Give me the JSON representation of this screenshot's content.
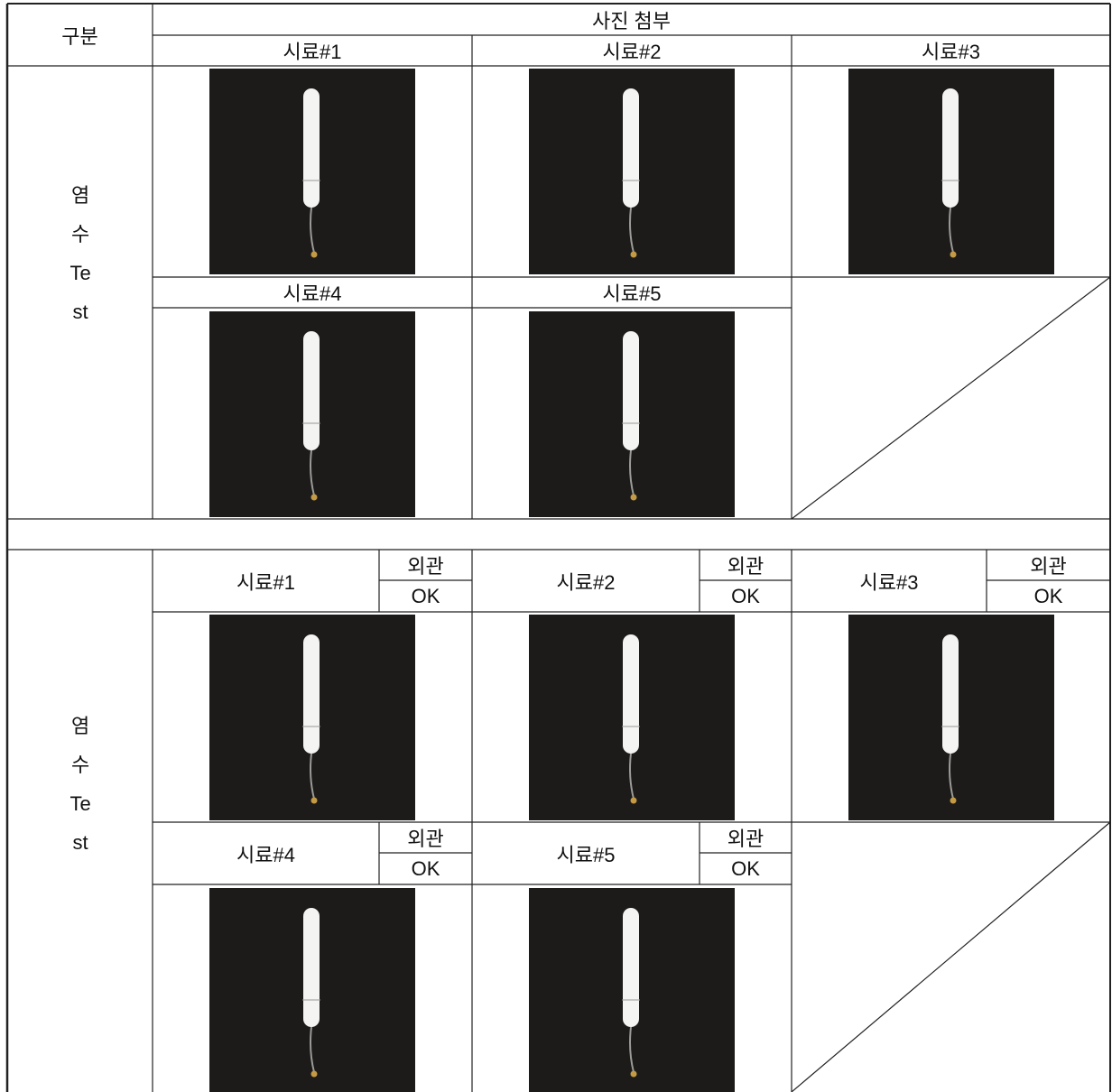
{
  "header": {
    "category": "구분",
    "photos": "사진 첨부"
  },
  "sections": [
    {
      "label": "염수Test",
      "samples": [
        "시료#1",
        "시료#2",
        "시료#3",
        "시료#4",
        "시료#5"
      ]
    },
    {
      "label": "염수Test",
      "samples": [
        {
          "name": "시료#1",
          "appearance_label": "외관",
          "appearance": "OK"
        },
        {
          "name": "시료#2",
          "appearance_label": "외관",
          "appearance": "OK"
        },
        {
          "name": "시료#3",
          "appearance_label": "외관",
          "appearance": "OK"
        },
        {
          "name": "시료#4",
          "appearance_label": "외관",
          "appearance": "OK"
        },
        {
          "name": "시료#5",
          "appearance_label": "외관",
          "appearance": "OK"
        }
      ]
    }
  ]
}
